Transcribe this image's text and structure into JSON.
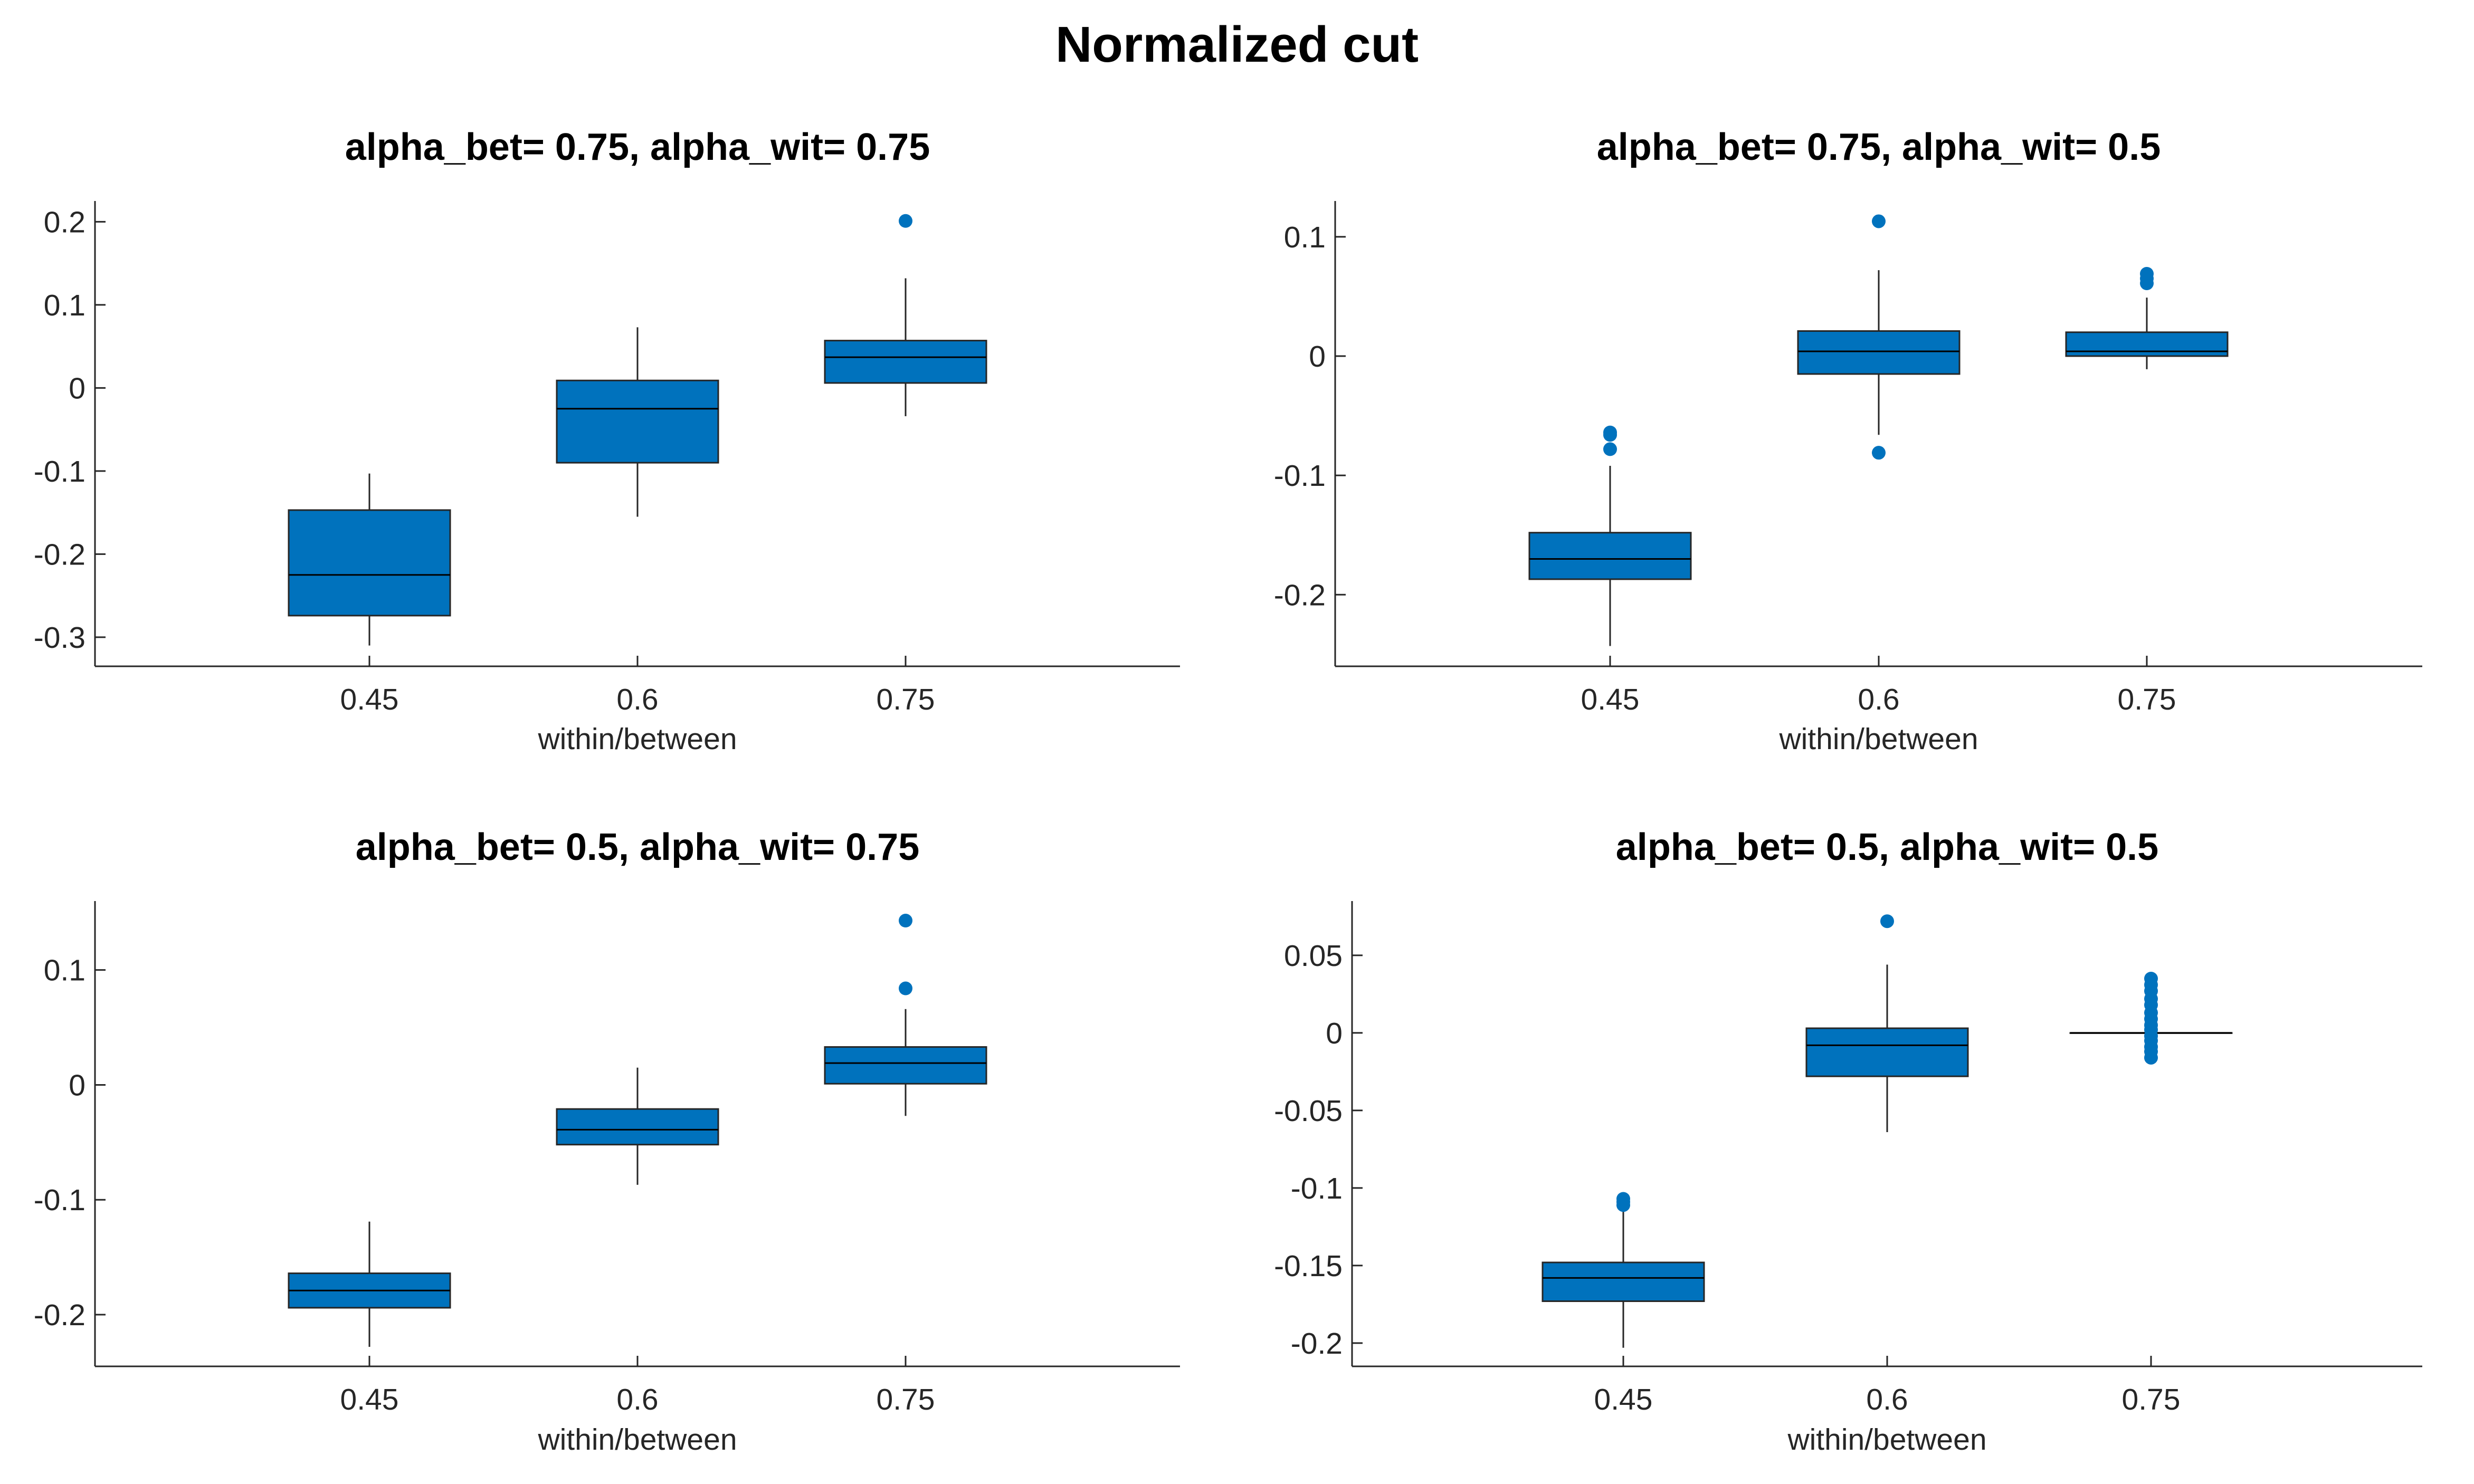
{
  "figure": {
    "title": "Normalized cut"
  },
  "style": {
    "box_color": "#0072BD",
    "line_color": "#262626",
    "median_color": "#000000"
  },
  "chart_data": [
    {
      "type": "box",
      "title": "alpha_bet= 0.75, alpha_wit= 0.75",
      "xlabel": "within/between",
      "ylabel": "",
      "categories": [
        "0.45",
        "0.6",
        "0.75"
      ],
      "ylim": [
        -0.335,
        0.225
      ],
      "yticks": [
        -0.3,
        -0.2,
        -0.1,
        0,
        0.1,
        0.2
      ],
      "yticklabels": [
        "-0.3",
        "-0.2",
        "-0.1",
        "0",
        "0.1",
        "0.2"
      ],
      "boxes": [
        {
          "q1": -0.274,
          "median": -0.225,
          "q3": -0.147,
          "whisker_low": -0.31,
          "whisker_high": -0.103,
          "outliers": []
        },
        {
          "q1": -0.09,
          "median": -0.025,
          "q3": 0.009,
          "whisker_low": -0.155,
          "whisker_high": 0.073,
          "outliers": []
        },
        {
          "q1": 0.006,
          "median": 0.037,
          "q3": 0.057,
          "whisker_low": -0.034,
          "whisker_high": 0.132,
          "outliers": [
            0.201
          ]
        }
      ]
    },
    {
      "type": "box",
      "title": "alpha_bet= 0.75, alpha_wit= 0.5",
      "xlabel": "within/between",
      "ylabel": "",
      "categories": [
        "0.45",
        "0.6",
        "0.75"
      ],
      "ylim": [
        -0.26,
        0.13
      ],
      "yticks": [
        -0.2,
        -0.1,
        0,
        0.1
      ],
      "yticklabels": [
        "-0.2",
        "-0.1",
        "0",
        "0.1"
      ],
      "boxes": [
        {
          "q1": -0.187,
          "median": -0.17,
          "q3": -0.148,
          "whisker_low": -0.243,
          "whisker_high": -0.092,
          "outliers": [
            -0.064,
            -0.066,
            -0.078
          ]
        },
        {
          "q1": -0.015,
          "median": 0.004,
          "q3": 0.021,
          "whisker_low": -0.066,
          "whisker_high": 0.072,
          "outliers": [
            0.113,
            -0.081
          ]
        },
        {
          "q1": 0.0,
          "median": 0.004,
          "q3": 0.02,
          "whisker_low": -0.011,
          "whisker_high": 0.049,
          "outliers": [
            0.061,
            0.065,
            0.069
          ]
        }
      ]
    },
    {
      "type": "box",
      "title": "alpha_bet= 0.5, alpha_wit= 0.75",
      "xlabel": "within/between",
      "ylabel": "",
      "categories": [
        "0.45",
        "0.6",
        "0.75"
      ],
      "ylim": [
        -0.245,
        0.16
      ],
      "yticks": [
        -0.2,
        -0.1,
        0,
        0.1
      ],
      "yticklabels": [
        "-0.2",
        "-0.1",
        "0",
        "0.1"
      ],
      "boxes": [
        {
          "q1": -0.194,
          "median": -0.179,
          "q3": -0.164,
          "whisker_low": -0.228,
          "whisker_high": -0.119,
          "outliers": []
        },
        {
          "q1": -0.052,
          "median": -0.039,
          "q3": -0.021,
          "whisker_low": -0.087,
          "whisker_high": 0.015,
          "outliers": []
        },
        {
          "q1": 0.001,
          "median": 0.019,
          "q3": 0.033,
          "whisker_low": -0.027,
          "whisker_high": 0.066,
          "outliers": [
            0.084,
            0.143
          ]
        }
      ]
    },
    {
      "type": "box",
      "title": "alpha_bet= 0.5, alpha_wit= 0.5",
      "xlabel": "within/between",
      "ylabel": "",
      "categories": [
        "0.45",
        "0.6",
        "0.75"
      ],
      "ylim": [
        -0.215,
        0.085
      ],
      "yticks": [
        -0.2,
        -0.15,
        -0.1,
        -0.05,
        0,
        0.05
      ],
      "yticklabels": [
        "-0.2",
        "-0.15",
        "-0.1",
        "-0.05",
        "0",
        "0.05"
      ],
      "boxes": [
        {
          "q1": -0.173,
          "median": -0.158,
          "q3": -0.148,
          "whisker_low": -0.203,
          "whisker_high": -0.114,
          "outliers": [
            -0.107,
            -0.109,
            -0.111
          ]
        },
        {
          "q1": -0.028,
          "median": -0.008,
          "q3": 0.003,
          "whisker_low": -0.064,
          "whisker_high": 0.044,
          "outliers": [
            0.072
          ]
        },
        {
          "q1": 0.0,
          "median": 0.0,
          "q3": 0.0,
          "whisker_low": 0.0,
          "whisker_high": 0.0,
          "outliers": [
            0.035,
            0.031,
            0.027,
            0.022,
            0.018,
            0.013,
            0.009,
            0.005,
            0.002,
            -0.002,
            -0.005,
            -0.009,
            -0.012,
            -0.016
          ]
        }
      ]
    }
  ]
}
